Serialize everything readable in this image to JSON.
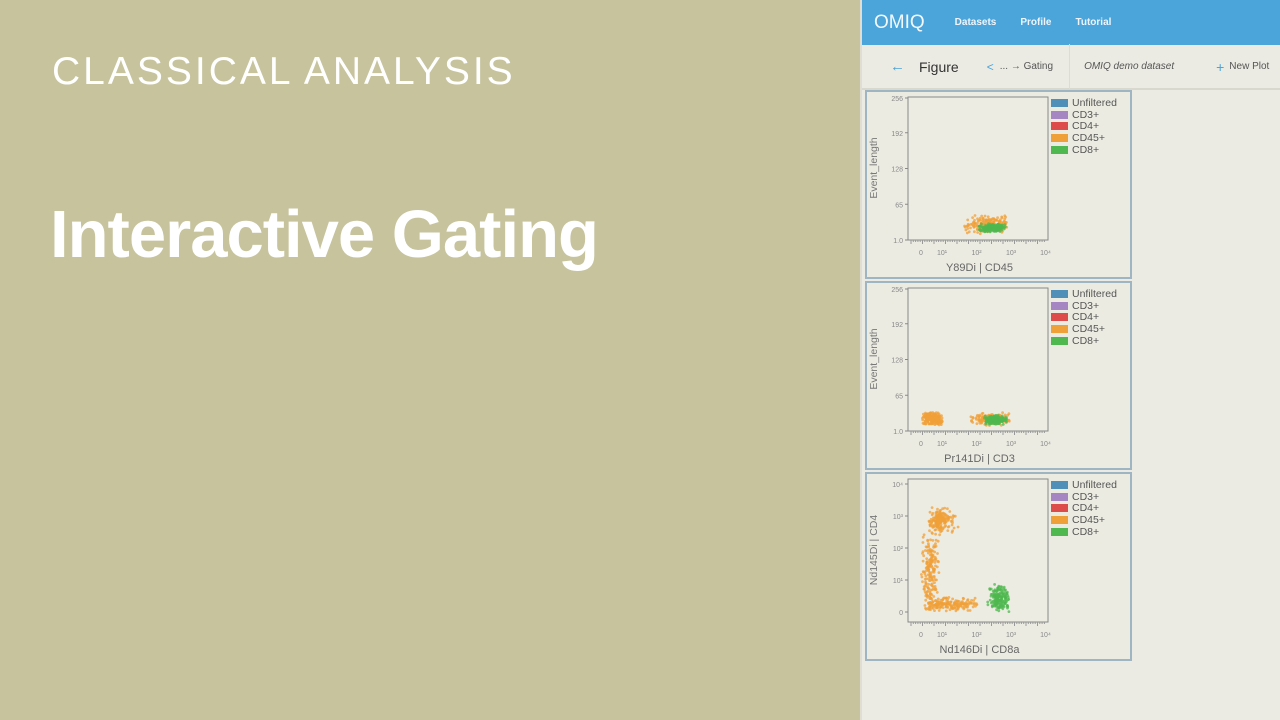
{
  "slide": {
    "kicker": "CLASSICAL ANALYSIS",
    "title": "Interactive Gating"
  },
  "app": {
    "logo": "OMIQ",
    "nav": [
      "Datasets",
      "Profile",
      "Tutorial"
    ],
    "subbar": {
      "back_icon": "arrow-left-icon",
      "page": "Figure",
      "breadcrumb": "... → Gating",
      "dataset": "OMIQ demo dataset",
      "new_plot": "New Plot"
    },
    "accent": "#4ba4da"
  },
  "legend": [
    {
      "label": "Unfiltered",
      "color": "#4f8fb8"
    },
    {
      "label": "CD3+",
      "color": "#a585c2"
    },
    {
      "label": "CD4+",
      "color": "#dd4b4b"
    },
    {
      "label": "CD45+",
      "color": "#f0a038"
    },
    {
      "label": "CD8+",
      "color": "#4fb84f"
    }
  ],
  "chart_data": [
    {
      "type": "scatter",
      "xlabel": "Y89Di | CD45",
      "ylabel": "Event_length",
      "xticks": [
        "0",
        "10¹",
        "10²",
        "10³",
        "10⁴"
      ],
      "yscale": "linear",
      "yticks": [
        "1.0",
        "65",
        "128",
        "192",
        "256"
      ],
      "ylim": [
        1,
        256
      ],
      "clusters": [
        {
          "pop": "CD45+",
          "x": [
            1.6,
            3.0
          ],
          "y": [
            12,
            45
          ]
        },
        {
          "pop": "CD8+",
          "x": [
            2.0,
            2.9
          ],
          "y": [
            15,
            30
          ]
        }
      ]
    },
    {
      "type": "scatter",
      "xlabel": "Pr141Di | CD3",
      "ylabel": "Event_length",
      "xticks": [
        "0",
        "10¹",
        "10²",
        "10³",
        "10⁴"
      ],
      "yscale": "linear",
      "yticks": [
        "1.0",
        "65",
        "128",
        "192",
        "256"
      ],
      "ylim": [
        1,
        256
      ],
      "clusters": [
        {
          "pop": "CD45+",
          "x": [
            0,
            1.1
          ],
          "y": [
            10,
            35
          ]
        },
        {
          "pop": "CD45+",
          "x": [
            1.8,
            3.0
          ],
          "y": [
            10,
            35
          ]
        },
        {
          "pop": "CD8+",
          "x": [
            2.2,
            2.9
          ],
          "y": [
            12,
            30
          ]
        }
      ]
    },
    {
      "type": "scatter",
      "xlabel": "Nd146Di | CD8a",
      "ylabel": "Nd145Di | CD4",
      "xticks": [
        "0",
        "10¹",
        "10²",
        "10³",
        "10⁴"
      ],
      "yscale": "log",
      "yticks": [
        "0",
        "10¹",
        "10²",
        "10³",
        "10⁴"
      ],
      "ylim": [
        0,
        4
      ],
      "clusters": [
        {
          "pop": "CD45+",
          "x": [
            0.3,
            1.5
          ],
          "y": [
            2.4,
            3.3
          ]
        },
        {
          "pop": "CD45+",
          "x": [
            0,
            0.9
          ],
          "y": [
            0,
            2.6
          ]
        },
        {
          "pop": "CD45+",
          "x": [
            0,
            2.2
          ],
          "y": [
            0,
            0.5
          ]
        },
        {
          "pop": "CD8+",
          "x": [
            2.3,
            3.0
          ],
          "y": [
            0,
            0.9
          ]
        }
      ]
    }
  ]
}
